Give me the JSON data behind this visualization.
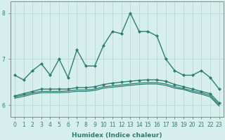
{
  "xlabel": "Humidex (Indice chaleur)",
  "background_color": "#d6eeec",
  "grid_color": "#b8d8d4",
  "line_color": "#2e7d72",
  "ylim": [
    5.75,
    8.25
  ],
  "xlim": [
    -0.5,
    23.5
  ],
  "series": [
    {
      "x": [
        0,
        1,
        2,
        3,
        4,
        5,
        6,
        7,
        8,
        9,
        10,
        11,
        12,
        13,
        14,
        15,
        16,
        17,
        18,
        19,
        20,
        21,
        22,
        23
      ],
      "y": [
        6.65,
        6.55,
        6.75,
        6.9,
        6.65,
        7.0,
        6.6,
        7.2,
        6.85,
        6.85,
        7.3,
        7.6,
        7.55,
        8.0,
        7.6,
        7.6,
        7.5,
        7.0,
        6.75,
        6.65,
        6.65,
        6.75,
        6.6,
        6.35
      ],
      "marker": "D",
      "markersize": 2.0,
      "linewidth": 1.0
    },
    {
      "x": [
        0,
        1,
        2,
        3,
        4,
        5,
        6,
        7,
        8,
        9,
        10,
        11,
        12,
        13,
        14,
        15,
        16,
        17,
        18,
        19,
        20,
        21,
        22,
        23
      ],
      "y": [
        6.2,
        6.25,
        6.3,
        6.35,
        6.35,
        6.35,
        6.35,
        6.38,
        6.38,
        6.4,
        6.45,
        6.48,
        6.5,
        6.52,
        6.54,
        6.55,
        6.55,
        6.52,
        6.45,
        6.4,
        6.35,
        6.3,
        6.25,
        6.05
      ],
      "marker": "D",
      "markersize": 2.0,
      "linewidth": 1.0
    },
    {
      "x": [
        0,
        1,
        2,
        3,
        4,
        5,
        6,
        7,
        8,
        9,
        10,
        11,
        12,
        13,
        14,
        15,
        16,
        17,
        18,
        19,
        20,
        21,
        22,
        23
      ],
      "y": [
        6.18,
        6.22,
        6.27,
        6.3,
        6.3,
        6.3,
        6.31,
        6.33,
        6.33,
        6.35,
        6.4,
        6.42,
        6.44,
        6.46,
        6.48,
        6.49,
        6.49,
        6.46,
        6.4,
        6.36,
        6.31,
        6.27,
        6.21,
        6.01
      ],
      "marker": null,
      "markersize": 0,
      "linewidth": 0.9
    },
    {
      "x": [
        0,
        1,
        2,
        3,
        4,
        5,
        6,
        7,
        8,
        9,
        10,
        11,
        12,
        13,
        14,
        15,
        16,
        17,
        18,
        19,
        20,
        21,
        22,
        23
      ],
      "y": [
        6.15,
        6.19,
        6.24,
        6.27,
        6.27,
        6.27,
        6.28,
        6.3,
        6.3,
        6.32,
        6.37,
        6.39,
        6.41,
        6.43,
        6.45,
        6.46,
        6.46,
        6.43,
        6.37,
        6.34,
        6.28,
        6.24,
        6.18,
        5.98
      ],
      "marker": null,
      "markersize": 0,
      "linewidth": 0.9
    }
  ],
  "yticks": [
    6,
    7,
    8
  ],
  "tick_fontsize": 5.5,
  "xlabel_fontsize": 6.5
}
